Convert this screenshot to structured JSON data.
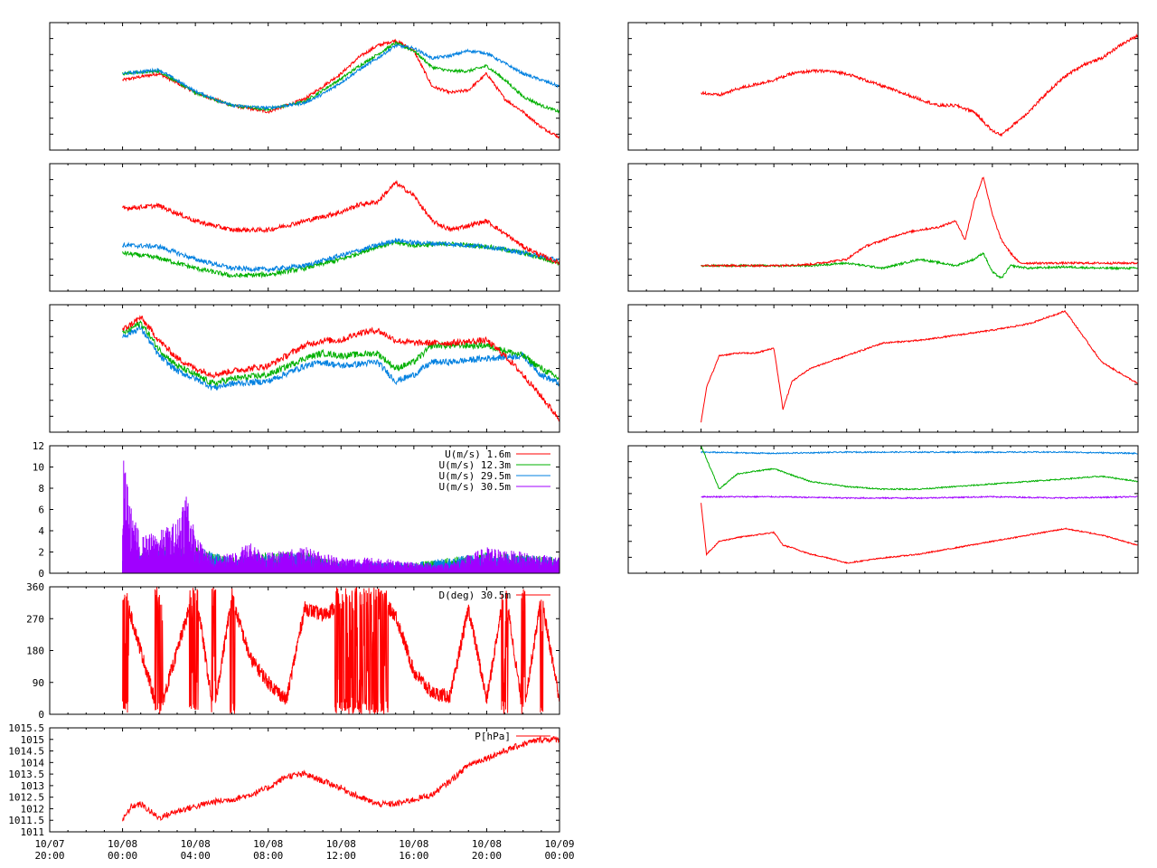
{
  "x_axis": {
    "range": [
      "10/07 20:00",
      "10/09 00:00"
    ],
    "tick_labels": [
      {
        "date": "10/07",
        "time": "20:00"
      },
      {
        "date": "10/08",
        "time": "00:00"
      },
      {
        "date": "10/08",
        "time": "04:00"
      },
      {
        "date": "10/08",
        "time": "08:00"
      },
      {
        "date": "10/08",
        "time": "12:00"
      },
      {
        "date": "10/08",
        "time": "16:00"
      },
      {
        "date": "10/08",
        "time": "20:00"
      },
      {
        "date": "10/09",
        "time": "00:00"
      }
    ]
  },
  "colors": {
    "red": "#ff0000",
    "green": "#00b000",
    "blue": "#0080e0",
    "purple": "#a000ff"
  },
  "chart_data": [
    {
      "type": "line",
      "grid": false,
      "series": [
        {
          "color": "#ff0000",
          "x": [
            4.0,
            6.0,
            8.0,
            10.0,
            12.0,
            14.0,
            15.0,
            16.0,
            17.0,
            18.0,
            19.0,
            20.0,
            21.0,
            22.0,
            23.0,
            24.0,
            25.0,
            26.0,
            27.0,
            28.0
          ],
          "y": [
            0.55,
            0.6,
            0.45,
            0.35,
            0.3,
            0.4,
            0.5,
            0.6,
            0.73,
            0.82,
            0.86,
            0.78,
            0.5,
            0.45,
            0.47,
            0.6,
            0.4,
            0.3,
            0.18,
            0.1
          ]
        },
        {
          "color": "#00b000",
          "x": [
            4.0,
            6.0,
            8.0,
            10.0,
            12.0,
            14.0,
            15.0,
            16.0,
            17.0,
            18.0,
            19.0,
            20.0,
            21.0,
            22.0,
            23.0,
            24.0,
            25.0,
            26.0,
            27.0,
            28.0
          ],
          "y": [
            0.6,
            0.62,
            0.45,
            0.35,
            0.32,
            0.38,
            0.47,
            0.56,
            0.66,
            0.75,
            0.84,
            0.78,
            0.65,
            0.62,
            0.62,
            0.66,
            0.55,
            0.42,
            0.35,
            0.3
          ]
        },
        {
          "color": "#0080e0",
          "x": [
            4.0,
            6.0,
            8.0,
            10.0,
            12.0,
            14.0,
            15.0,
            16.0,
            17.0,
            18.0,
            19.0,
            20.0,
            21.0,
            22.0,
            23.0,
            24.0,
            25.0,
            26.0,
            27.0,
            28.0
          ],
          "y": [
            0.6,
            0.63,
            0.46,
            0.35,
            0.33,
            0.37,
            0.44,
            0.53,
            0.63,
            0.72,
            0.82,
            0.8,
            0.72,
            0.74,
            0.78,
            0.76,
            0.68,
            0.6,
            0.55,
            0.5
          ]
        }
      ]
    },
    {
      "type": "line",
      "grid": false,
      "series": [
        {
          "color": "#00b000",
          "x": [
            4.0,
            6.0,
            8.0,
            10.0,
            12.0,
            14.0,
            16.0,
            18.0,
            19.0,
            20.0,
            22.0,
            24.0,
            26.0,
            28.0
          ],
          "y": [
            0.3,
            0.26,
            0.18,
            0.12,
            0.13,
            0.18,
            0.25,
            0.35,
            0.38,
            0.36,
            0.37,
            0.35,
            0.3,
            0.22
          ]
        },
        {
          "color": "#0080e0",
          "x": [
            4.0,
            6.0,
            8.0,
            10.0,
            12.0,
            14.0,
            16.0,
            18.0,
            19.0,
            20.0,
            22.0,
            24.0,
            26.0,
            28.0
          ],
          "y": [
            0.36,
            0.35,
            0.25,
            0.18,
            0.17,
            0.2,
            0.28,
            0.36,
            0.4,
            0.38,
            0.37,
            0.35,
            0.3,
            0.24
          ]
        },
        {
          "color": "#ff0000",
          "x": [
            4.0,
            6.0,
            8.0,
            10.0,
            12.0,
            14.0,
            16.0,
            17.0,
            18.0,
            19.0,
            20.0,
            21.0,
            22.0,
            24.0,
            26.0,
            27.0,
            28.0
          ],
          "y": [
            0.65,
            0.67,
            0.55,
            0.48,
            0.48,
            0.55,
            0.62,
            0.68,
            0.7,
            0.85,
            0.75,
            0.55,
            0.48,
            0.55,
            0.35,
            0.28,
            0.22
          ]
        }
      ]
    },
    {
      "type": "line",
      "grid": false,
      "series": [
        {
          "color": "#0080e0",
          "x": [
            4.0,
            5.0,
            6.0,
            7.0,
            8.0,
            9.0,
            10.0,
            12.0,
            14.0,
            15.0,
            16.0,
            18.0,
            19.0,
            20.0,
            21.0,
            22.0,
            24.0,
            26.0,
            27.0,
            28.0
          ],
          "y": [
            0.75,
            0.82,
            0.6,
            0.48,
            0.42,
            0.35,
            0.38,
            0.4,
            0.52,
            0.55,
            0.52,
            0.55,
            0.4,
            0.45,
            0.55,
            0.55,
            0.58,
            0.6,
            0.45,
            0.38
          ]
        },
        {
          "color": "#00b000",
          "x": [
            4.0,
            5.0,
            6.0,
            7.0,
            8.0,
            9.0,
            10.0,
            12.0,
            14.0,
            15.0,
            16.0,
            18.0,
            19.0,
            20.0,
            21.0,
            22.0,
            24.0,
            26.0,
            27.0,
            28.0
          ],
          "y": [
            0.77,
            0.86,
            0.65,
            0.52,
            0.45,
            0.38,
            0.42,
            0.45,
            0.58,
            0.62,
            0.6,
            0.62,
            0.5,
            0.55,
            0.68,
            0.68,
            0.68,
            0.6,
            0.5,
            0.42
          ]
        },
        {
          "color": "#ff0000",
          "x": [
            4.0,
            5.0,
            6.0,
            7.0,
            8.0,
            9.0,
            10.0,
            12.0,
            14.0,
            15.0,
            16.0,
            17.0,
            18.0,
            19.0,
            20.0,
            21.0,
            22.0,
            24.0,
            25.0,
            26.0,
            27.0,
            28.0
          ],
          "y": [
            0.8,
            0.9,
            0.72,
            0.58,
            0.5,
            0.45,
            0.48,
            0.52,
            0.68,
            0.72,
            0.72,
            0.78,
            0.8,
            0.72,
            0.7,
            0.7,
            0.7,
            0.72,
            0.6,
            0.45,
            0.28,
            0.1
          ]
        }
      ]
    },
    {
      "type": "line",
      "grid": false,
      "xlim": [
        "10/07 20:00",
        "10/09 00:00"
      ],
      "ylim": [
        0,
        12
      ],
      "yticks": [
        "0",
        "2",
        "4",
        "6",
        "8",
        "10",
        "12"
      ],
      "legend_position": "top-right",
      "series": [
        {
          "name": "U(m/s)  1.6m",
          "color": "#ff0000",
          "x": [
            4.0,
            5.0,
            6.0,
            8.0,
            10.0,
            12.0,
            16.0,
            20.0,
            24.0,
            28.0
          ],
          "y": [
            1.5,
            0.8,
            0.5,
            0.6,
            0.4,
            0.3,
            0.2,
            0.3,
            0.2,
            0.2
          ]
        },
        {
          "name": "U(m/s) 12.3m",
          "color": "#00b000",
          "x": [
            4.0,
            5.0,
            6.0,
            8.0,
            10.0,
            12.0,
            14.0,
            16.0,
            20.0,
            24.0,
            28.0
          ],
          "y": [
            3.0,
            2.0,
            2.5,
            2.5,
            1.5,
            2.0,
            2.0,
            1.0,
            1.0,
            2.0,
            1.5
          ]
        },
        {
          "name": "U(m/s) 29.5m",
          "color": "#0080e0",
          "x": [
            4.0,
            5.0,
            6.0,
            8.0,
            10.0,
            12.0,
            14.0,
            16.0,
            20.0,
            24.0,
            28.0
          ],
          "y": [
            3.0,
            2.0,
            2.5,
            2.5,
            1.5,
            2.0,
            2.0,
            1.0,
            1.0,
            2.0,
            1.5
          ]
        },
        {
          "name": "U(m/s) 30.5m",
          "color": "#a000ff",
          "x": [
            4.0,
            4.5,
            5.0,
            6.0,
            7.0,
            7.5,
            8.0,
            9.0,
            10.0,
            11.0,
            12.0,
            14.0,
            16.0,
            18.0,
            20.0,
            22.0,
            24.0,
            26.0,
            28.0
          ],
          "y": [
            11.5,
            6.0,
            3.5,
            4.0,
            5.0,
            8.5,
            3.5,
            1.5,
            2.0,
            3.0,
            2.0,
            2.5,
            1.5,
            1.5,
            1.0,
            1.0,
            2.5,
            2.0,
            1.5
          ]
        }
      ]
    },
    {
      "type": "line",
      "grid": false,
      "xlim": [
        "10/07 20:00",
        "10/09 00:00"
      ],
      "ylim": [
        0,
        360
      ],
      "yticks": [
        "0",
        "90",
        "180",
        "270",
        "360"
      ],
      "legend_position": "top-right",
      "series": [
        {
          "name": "D(deg)  30.5m",
          "color": "#ff0000",
          "x": [
            4.0,
            6.0,
            8.0,
            9.0,
            10.0,
            11.0,
            12.0,
            13.0,
            14.0,
            15.0,
            16.0,
            17.0,
            18.0,
            19.0,
            20.0,
            21.0,
            22.0,
            23.0,
            24.0,
            25.0,
            26.0,
            27.0,
            28.0
          ],
          "y": [
            360.0,
            0.0,
            360.0,
            0.0,
            330.0,
            160.0,
            90.0,
            40.0,
            300.0,
            280.0,
            310.0,
            300.0,
            330.0,
            280.0,
            120.0,
            60.0,
            50.0,
            300.0,
            40.0,
            360.0,
            0.0,
            330.0,
            40.0
          ]
        }
      ]
    },
    {
      "type": "line",
      "grid": false,
      "xlim": [
        "10/07 20:00",
        "10/09 00:00"
      ],
      "ylim": [
        1011,
        1015.5
      ],
      "yticks": [
        "1011",
        "1011.5",
        "1012",
        "1012.5",
        "1013",
        "1013.5",
        "1014",
        "1014.5",
        "1015",
        "1015.5"
      ],
      "legend_position": "top-right",
      "series": [
        {
          "name": "P[hPa]",
          "color": "#ff0000",
          "x": [
            4.0,
            4.5,
            5.0,
            6.0,
            7.0,
            8.0,
            9.0,
            10.0,
            11.0,
            12.0,
            13.0,
            14.0,
            15.0,
            16.0,
            17.0,
            18.0,
            19.0,
            20.0,
            21.0,
            22.0,
            23.0,
            24.0,
            25.0,
            26.0,
            27.0,
            28.0
          ],
          "y": [
            1011.5,
            1012.1,
            1012.2,
            1011.6,
            1011.9,
            1012.1,
            1012.3,
            1012.4,
            1012.6,
            1012.9,
            1013.4,
            1013.5,
            1013.2,
            1012.9,
            1012.5,
            1012.2,
            1012.2,
            1012.4,
            1012.6,
            1013.2,
            1013.9,
            1014.2,
            1014.5,
            1014.8,
            1015.0,
            1015.0
          ]
        }
      ]
    },
    {
      "type": "line",
      "grid": false,
      "series": [
        {
          "color": "#ff0000",
          "x": [
            4.0,
            5.0,
            6.0,
            8.0,
            9.0,
            10.0,
            11.0,
            12.0,
            13.0,
            14.0,
            15.0,
            16.0,
            17.0,
            18.0,
            19.0,
            20.0,
            20.5,
            21.0,
            22.0,
            23.0,
            24.0,
            25.0,
            26.0,
            27.0,
            28.0
          ],
          "y": [
            0.45,
            0.43,
            0.48,
            0.55,
            0.6,
            0.62,
            0.62,
            0.6,
            0.55,
            0.5,
            0.45,
            0.4,
            0.35,
            0.35,
            0.3,
            0.15,
            0.12,
            0.18,
            0.3,
            0.45,
            0.58,
            0.67,
            0.72,
            0.82,
            0.9
          ]
        }
      ]
    },
    {
      "type": "line",
      "grid": false,
      "series": [
        {
          "color": "#00b000",
          "x": [
            4.0,
            8.0,
            10.0,
            12.0,
            14.0,
            16.0,
            18.0,
            19.0,
            19.5,
            20.0,
            20.5,
            21.0,
            22.0,
            24.0,
            26.0,
            28.0
          ],
          "y": [
            0.2,
            0.2,
            0.2,
            0.22,
            0.18,
            0.25,
            0.2,
            0.25,
            0.3,
            0.15,
            0.1,
            0.2,
            0.18,
            0.19,
            0.18,
            0.18
          ]
        },
        {
          "color": "#ff0000",
          "x": [
            4.0,
            8.0,
            10.0,
            12.0,
            13.0,
            14.0,
            15.0,
            16.0,
            17.0,
            18.0,
            18.5,
            19.0,
            19.5,
            20.0,
            20.5,
            21.0,
            21.5,
            22.0,
            24.0,
            26.0,
            28.0
          ],
          "y": [
            0.2,
            0.2,
            0.21,
            0.25,
            0.35,
            0.4,
            0.45,
            0.48,
            0.5,
            0.55,
            0.4,
            0.7,
            0.9,
            0.6,
            0.4,
            0.3,
            0.22,
            0.22,
            0.22,
            0.22,
            0.22
          ]
        }
      ]
    },
    {
      "type": "line",
      "grid": false,
      "series": [
        {
          "color": "#ff0000",
          "x": [
            4.0,
            4.3,
            5.0,
            6.0,
            7.0,
            8.0,
            8.5,
            9.0,
            9.5,
            10.0,
            11.0,
            12.0,
            14.0,
            16.0,
            18.0,
            19.0,
            20.0,
            22.0,
            24.0,
            26.0,
            28.0
          ],
          "y": [
            0.08,
            0.35,
            0.6,
            0.62,
            0.62,
            0.66,
            0.18,
            0.4,
            0.45,
            0.5,
            0.55,
            0.6,
            0.7,
            0.72,
            0.76,
            0.78,
            0.8,
            0.85,
            0.95,
            0.55,
            0.38
          ]
        }
      ]
    },
    {
      "type": "line",
      "grid": false,
      "series": [
        {
          "color": "#0080e0",
          "x": [
            4.0,
            8.0,
            12.0,
            16.0,
            20.0,
            24.0,
            28.0
          ],
          "y": [
            0.95,
            0.94,
            0.95,
            0.95,
            0.95,
            0.95,
            0.94
          ]
        },
        {
          "color": "#00b000",
          "x": [
            4.0,
            5.0,
            6.0,
            7.0,
            8.0,
            10.0,
            12.0,
            14.0,
            16.0,
            18.0,
            20.0,
            22.0,
            24.0,
            26.0,
            28.0
          ],
          "y": [
            1.0,
            0.66,
            0.78,
            0.8,
            0.82,
            0.72,
            0.68,
            0.66,
            0.66,
            0.68,
            0.7,
            0.72,
            0.74,
            0.76,
            0.72
          ]
        },
        {
          "color": "#a000ff",
          "x": [
            4.0,
            8.0,
            12.0,
            16.0,
            20.0,
            24.0,
            28.0
          ],
          "y": [
            0.6,
            0.6,
            0.59,
            0.59,
            0.6,
            0.59,
            0.6
          ]
        },
        {
          "color": "#ff0000",
          "x": [
            4.0,
            4.3,
            5.0,
            6.0,
            7.0,
            8.0,
            8.5,
            9.0,
            10.0,
            11.0,
            12.0,
            14.0,
            16.0,
            18.0,
            20.0,
            22.0,
            24.0,
            26.0,
            28.0
          ],
          "y": [
            0.55,
            0.15,
            0.25,
            0.28,
            0.3,
            0.32,
            0.22,
            0.2,
            0.15,
            0.12,
            0.08,
            0.12,
            0.15,
            0.2,
            0.25,
            0.3,
            0.35,
            0.3,
            0.22
          ]
        }
      ]
    }
  ]
}
